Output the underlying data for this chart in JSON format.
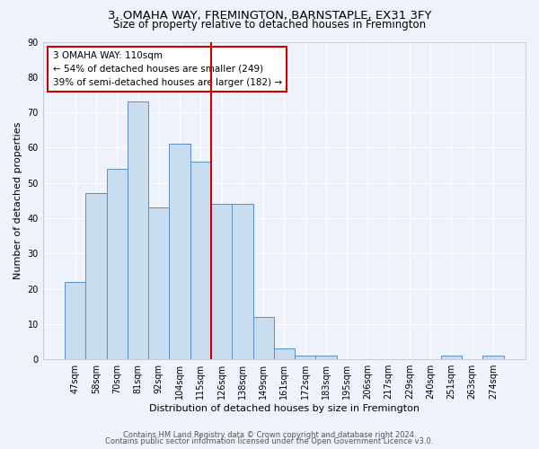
{
  "title1": "3, OMAHA WAY, FREMINGTON, BARNSTAPLE, EX31 3FY",
  "title2": "Size of property relative to detached houses in Fremington",
  "xlabel": "Distribution of detached houses by size in Fremington",
  "ylabel": "Number of detached properties",
  "bar_labels": [
    "47sqm",
    "58sqm",
    "70sqm",
    "81sqm",
    "92sqm",
    "104sqm",
    "115sqm",
    "126sqm",
    "138sqm",
    "149sqm",
    "161sqm",
    "172sqm",
    "183sqm",
    "195sqm",
    "206sqm",
    "217sqm",
    "229sqm",
    "240sqm",
    "251sqm",
    "263sqm",
    "274sqm"
  ],
  "bar_heights": [
    22,
    47,
    54,
    73,
    43,
    61,
    56,
    44,
    44,
    12,
    3,
    1,
    1,
    0,
    0,
    0,
    0,
    0,
    1,
    0,
    1
  ],
  "bar_color": "#c9dcf0",
  "bar_edge_color": "#5b8ec4",
  "red_line_index": 7,
  "annotation_text": "3 OMAHA WAY: 110sqm\n← 54% of detached houses are smaller (249)\n39% of semi-detached houses are larger (182) →",
  "annotation_box_color": "white",
  "annotation_box_edge_color": "#cc0000",
  "red_line_color": "#cc0000",
  "ylim": [
    0,
    90
  ],
  "yticks": [
    0,
    10,
    20,
    30,
    40,
    50,
    60,
    70,
    80,
    90
  ],
  "footer1": "Contains HM Land Registry data © Crown copyright and database right 2024.",
  "footer2": "Contains public sector information licensed under the Open Government Licence v3.0.",
  "background_color": "#eef2fa",
  "grid_color": "#ffffff",
  "title1_fontsize": 9.5,
  "title2_fontsize": 8.5,
  "xlabel_fontsize": 8,
  "ylabel_fontsize": 8,
  "tick_fontsize": 7,
  "footer_fontsize": 6,
  "annotation_fontsize": 7.5
}
